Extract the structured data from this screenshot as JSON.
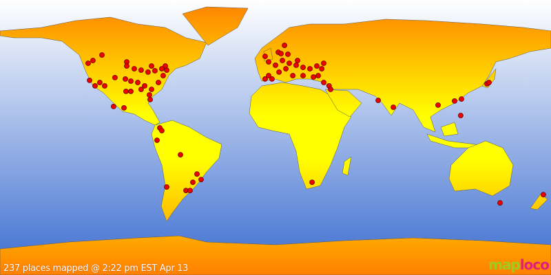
{
  "caption": "237 places mapped @ 2:22 pm EST Apr 13",
  "logo": {
    "part1": "map",
    "part2": "loco"
  },
  "colors": {
    "ocean_top": "#ffffff",
    "ocean_bottom": "#3a6cd0",
    "land_top": "#ff7f00",
    "land_bottom": "#ffff00",
    "marker": "#ee0000",
    "marker_outline": "#660000",
    "logo_map": "#9ccc1f",
    "logo_loco": "#e0207a"
  },
  "projection": "equirectangular",
  "markers": [
    [
      -122.4,
      48.6
    ],
    [
      -119.3,
      50.4
    ],
    [
      -113.4,
      54
    ],
    [
      -97.2,
      49.5
    ],
    [
      -97.2,
      46.8
    ],
    [
      -92.3,
      45
    ],
    [
      -87.8,
      44.1
    ],
    [
      -83.3,
      42.8
    ],
    [
      -78.8,
      43.7
    ],
    [
      -74.3,
      45
    ],
    [
      -71.1,
      44.1
    ],
    [
      -72,
      46.8
    ],
    [
      -81,
      46.8
    ],
    [
      -121.5,
      37.4
    ],
    [
      -117.9,
      33.8
    ],
    [
      -114.8,
      36
    ],
    [
      -111.6,
      33.8
    ],
    [
      -104.9,
      39.2
    ],
    [
      -98.1,
      38.3
    ],
    [
      -94.5,
      36.9
    ],
    [
      -90,
      36
    ],
    [
      -85.5,
      33.8
    ],
    [
      -81,
      31.5
    ],
    [
      -76.5,
      36
    ],
    [
      -73.4,
      40.5
    ],
    [
      -97.7,
      30.2
    ],
    [
      -94.5,
      30.2
    ],
    [
      -87.8,
      31.5
    ],
    [
      -82.4,
      27.9
    ],
    [
      -81.9,
      24.8
    ],
    [
      -105.8,
      20.3
    ],
    [
      -99,
      19.4
    ],
    [
      -75.6,
      6.3
    ],
    [
      -74.3,
      4.5
    ],
    [
      -77.4,
      -1.8
    ],
    [
      -62.1,
      -11.3
    ],
    [
      -51.3,
      -23.9
    ],
    [
      -48.6,
      -27.5
    ],
    [
      -54,
      -29.3
    ],
    [
      -58.5,
      -34.7
    ],
    [
      -55.8,
      -34.7
    ],
    [
      -71.1,
      -32.4
    ],
    [
      23.9,
      -29.3
    ],
    [
      67.1,
      24.3
    ],
    [
      77,
      19.8
    ],
    [
      106.2,
      21.2
    ],
    [
      117,
      23.9
    ],
    [
      121.5,
      25.2
    ],
    [
      121,
      14.4
    ],
    [
      138.2,
      35.1
    ],
    [
      139.5,
      36
    ],
    [
      146.7,
      -42.8
    ],
    [
      175,
      -37.4
    ],
    [
      5.9,
      60.3
    ],
    [
      -6.8,
      53.1
    ],
    [
      -4.5,
      49.5
    ],
    [
      0,
      47.3
    ],
    [
      4.5,
      50.4
    ],
    [
      9,
      48.6
    ],
    [
      13.5,
      47.3
    ],
    [
      18,
      45.9
    ],
    [
      22.5,
      45
    ],
    [
      27,
      46.8
    ],
    [
      31.5,
      48.6
    ],
    [
      -4.5,
      40.5
    ],
    [
      -2.3,
      38.3
    ],
    [
      -6.8,
      38.3
    ],
    [
      2.3,
      42.8
    ],
    [
      6.8,
      45
    ],
    [
      11.3,
      40.5
    ],
    [
      18,
      40.5
    ],
    [
      24.8,
      39.6
    ],
    [
      31.5,
      36
    ],
    [
      35,
      33.8
    ],
    [
      36,
      31.5
    ],
    [
      27.9,
      40.5
    ],
    [
      30.2,
      45
    ],
    [
      14.4,
      50.4
    ],
    [
      8.1,
      54.5
    ],
    [
      1.8,
      55.8
    ],
    [
      3.6,
      54.9
    ]
  ]
}
